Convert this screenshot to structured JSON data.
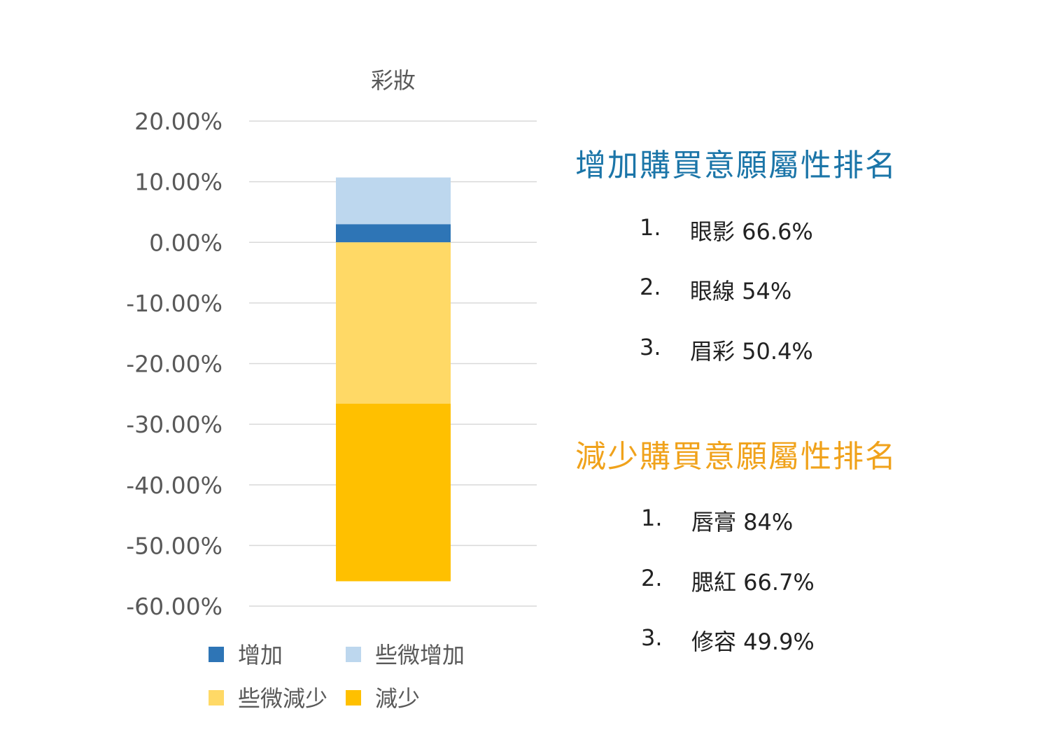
{
  "chart_data": {
    "type": "bar",
    "stacked": true,
    "title": "彩妝",
    "categories": [
      "彩妝"
    ],
    "ylim": [
      -60,
      20
    ],
    "ytick_labels": [
      "20.00%",
      "10.00%",
      "0.00%",
      "-10.00%",
      "-20.00%",
      "-30.00%",
      "-40.00%",
      "-50.00%",
      "-60.00%"
    ],
    "yticks": [
      20,
      10,
      0,
      -10,
      -20,
      -30,
      -40,
      -50,
      -60
    ],
    "grid": true,
    "legend_position": "bottom",
    "series": [
      {
        "name": "增加",
        "values": [
          3.0
        ],
        "color": "#2e75b6"
      },
      {
        "name": "些微增加",
        "values": [
          7.7
        ],
        "color": "#bdd7ee"
      },
      {
        "name": "些微減少",
        "values": [
          -26.6
        ],
        "color": "#ffd966"
      },
      {
        "name": "減少",
        "values": [
          -29.3
        ],
        "color": "#ffc000"
      }
    ]
  },
  "rankings": {
    "increase": {
      "title": "增加購買意願屬性排名",
      "color": "#1b75a8",
      "items": [
        {
          "num": "1.",
          "text": "眼影 66.6%"
        },
        {
          "num": "2.",
          "text": "眼線 54%"
        },
        {
          "num": "3.",
          "text": "眉彩 50.4%"
        }
      ]
    },
    "decrease": {
      "title": "減少購買意願屬性排名",
      "color": "#f0a21b",
      "items": [
        {
          "num": "1.",
          "text": "唇膏 84%"
        },
        {
          "num": "2.",
          "text": "腮紅 66.7%"
        },
        {
          "num": "3.",
          "text": "修容 49.9%"
        }
      ]
    }
  }
}
